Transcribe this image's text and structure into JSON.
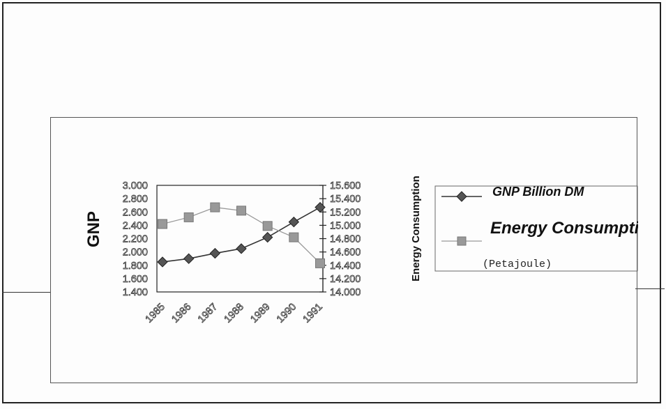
{
  "chart_data": {
    "type": "line",
    "categories": [
      "1985",
      "1986",
      "1987",
      "1988",
      "1989",
      "1990",
      "1991"
    ],
    "series": [
      {
        "name": "GNP Billion DM",
        "axis": "left",
        "marker": "diamond",
        "color": "#333333",
        "values": [
          1.85,
          1.9,
          1.98,
          2.05,
          2.22,
          2.45,
          2.67
        ]
      },
      {
        "name": "Energy Consumption",
        "name_note": "(Petajoule)",
        "axis": "right",
        "marker": "square",
        "color": "#999999",
        "values": [
          15.02,
          15.12,
          15.27,
          15.22,
          14.99,
          14.82,
          14.43
        ]
      }
    ],
    "ylabel_left": "GNP",
    "ylabel_right": "Energy Consumption",
    "ylim_left": [
      1.4,
      3.0
    ],
    "ylim_right": [
      14.0,
      15.6
    ],
    "yticks_left": [
      "3.000",
      "2.800",
      "2.600",
      "2.400",
      "2.200",
      "2.000",
      "1.800",
      "1.600",
      "1.400"
    ],
    "yticks_right": [
      "15.600",
      "15.400",
      "15.200",
      "15.000",
      "14.800",
      "14.600",
      "14.400",
      "14.200",
      "14.000"
    ],
    "legend_position": "right",
    "grid": false
  }
}
